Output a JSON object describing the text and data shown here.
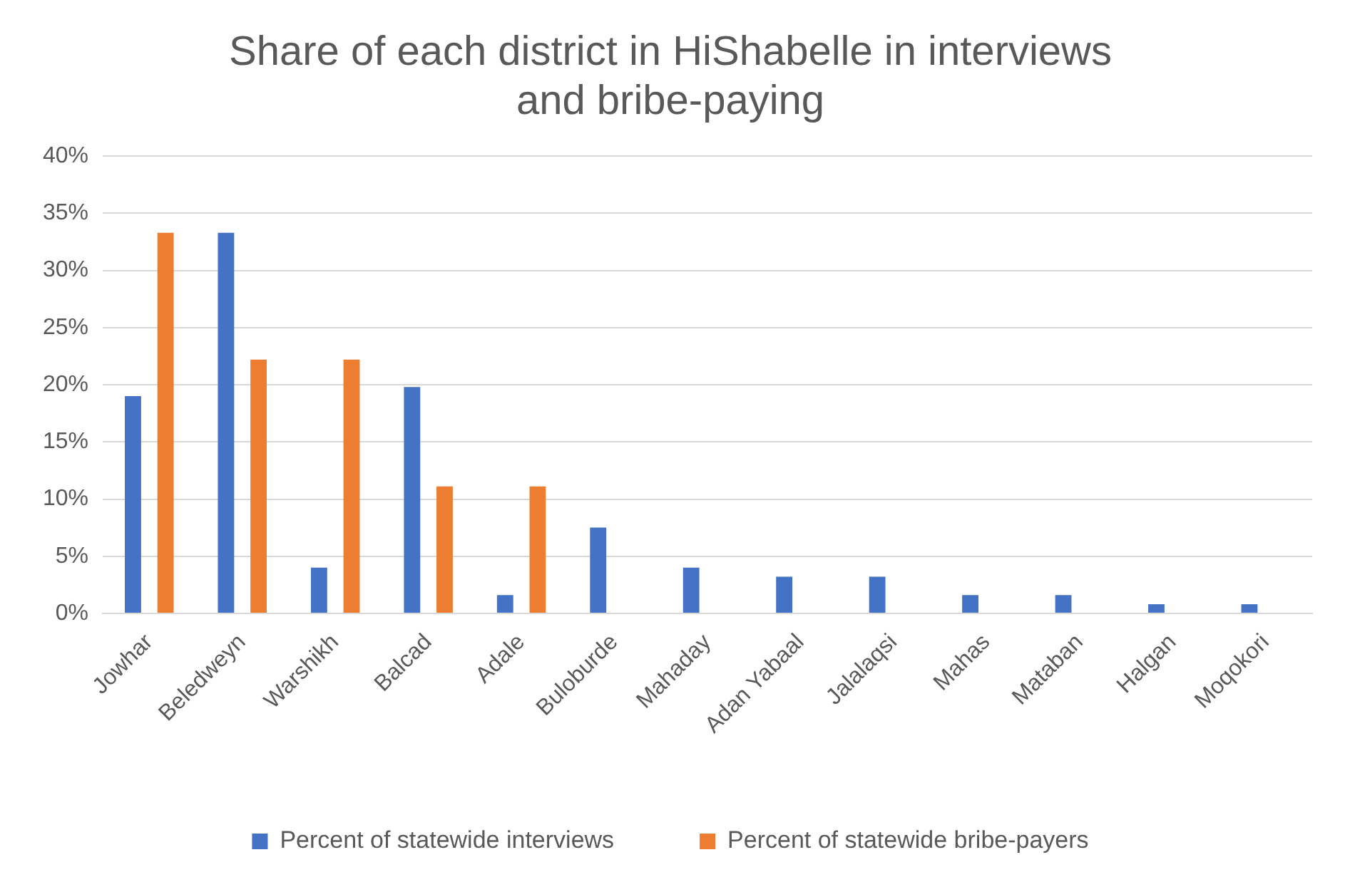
{
  "chart_data": {
    "type": "bar",
    "title": "Share of each district in HiShabelle in interviews and bribe-paying",
    "categories": [
      "Jowhar",
      "Beledweyn",
      "Warshikh",
      "Balcad",
      "Adale",
      "Buloburde",
      "Mahaday",
      "Adan Yabaal",
      "Jalalaqsi",
      "Mahas",
      "Mataban",
      "Halgan",
      "Moqokori"
    ],
    "series": [
      {
        "name": "Percent of statewide interviews",
        "color": "#4472c4",
        "values": [
          19,
          33.3,
          4,
          19.8,
          1.6,
          7.5,
          4,
          3.2,
          3.2,
          1.6,
          1.6,
          0.8,
          0.8
        ]
      },
      {
        "name": "Percent of statewide bribe-payers",
        "color": "#ed7d31",
        "values": [
          33.3,
          22.2,
          22.2,
          11.1,
          11.1,
          0,
          0,
          0,
          0,
          0,
          0,
          0,
          0
        ]
      }
    ],
    "ylim": [
      0,
      40
    ],
    "yticks": [
      {
        "value": 0,
        "label": "0%"
      },
      {
        "value": 5,
        "label": "5%"
      },
      {
        "value": 10,
        "label": "10%"
      },
      {
        "value": 15,
        "label": "15%"
      },
      {
        "value": 20,
        "label": "20%"
      },
      {
        "value": 25,
        "label": "25%"
      },
      {
        "value": 30,
        "label": "30%"
      },
      {
        "value": 35,
        "label": "35%"
      },
      {
        "value": 40,
        "label": "40%"
      }
    ],
    "grid": "y",
    "legend": "bottom"
  }
}
